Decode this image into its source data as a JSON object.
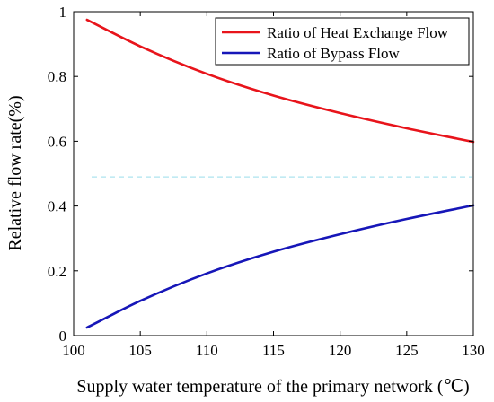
{
  "chart_data": {
    "type": "line",
    "xlabel": "Supply water temperature of the primary network (℃)",
    "ylabel": "Relative flow rate(%)",
    "xlim": [
      100,
      130
    ],
    "ylim": [
      0,
      1
    ],
    "xticks": [
      100,
      105,
      110,
      115,
      120,
      125,
      130
    ],
    "yticks": [
      0,
      0.2,
      0.4,
      0.6,
      0.8,
      1
    ],
    "grid": false,
    "legend_position": "top-right",
    "reference_line": {
      "y": 0.49,
      "style": "dashed",
      "color": "#aee4ef"
    },
    "series": [
      {
        "name": "Ratio of Heat Exchange Flow",
        "color": "#e8141b",
        "x": [
          101,
          105,
          110,
          115,
          120,
          125,
          130
        ],
        "y": [
          0.975,
          0.893,
          0.808,
          0.741,
          0.687,
          0.64,
          0.598
        ]
      },
      {
        "name": "Ratio of Bypass Flow",
        "color": "#1616b8",
        "x": [
          101,
          105,
          110,
          115,
          120,
          125,
          130
        ],
        "y": [
          0.025,
          0.107,
          0.192,
          0.259,
          0.313,
          0.36,
          0.402
        ]
      }
    ]
  }
}
